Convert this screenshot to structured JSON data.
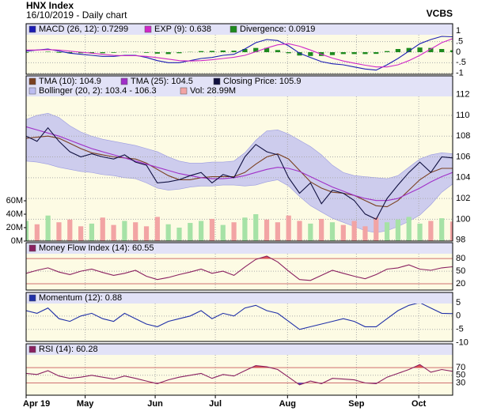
{
  "header": {
    "title": "HNX Index",
    "subtitle": "16/10/2019 - Daily chart",
    "source": "VCBS"
  },
  "chart_data": [
    {
      "type": "line",
      "ylim": [
        -1.05,
        1.35
      ],
      "yticks": [
        1,
        {
          "value": 0.5,
          "label": ".5"
        },
        0,
        {
          "value": -0.5,
          "label": "-.5"
        },
        -1
      ],
      "series": [
        {
          "name": "MACD (26, 12): 0.7299",
          "color": "#1c1cb4",
          "style": "line",
          "values": [
            0.05,
            0.1,
            0.15,
            0.05,
            -0.05,
            -0.1,
            -0.15,
            -0.2,
            -0.2,
            -0.15,
            -0.15,
            -0.25,
            -0.4,
            -0.5,
            -0.5,
            -0.4,
            -0.3,
            -0.25,
            -0.15,
            -0.1,
            0.15,
            0.45,
            0.6,
            0.55,
            0.3,
            -0.05,
            -0.25,
            -0.45,
            -0.55,
            -0.6,
            -0.7,
            -0.8,
            -0.85,
            -0.6,
            -0.3,
            0.05,
            0.4,
            0.6,
            0.75,
            0.73
          ]
        },
        {
          "name": "EXP (9): 0.638",
          "color": "#d028c8",
          "style": "line",
          "values": [
            0.1,
            0.1,
            0.12,
            0.1,
            0.05,
            0,
            -0.05,
            -0.1,
            -0.15,
            -0.17,
            -0.17,
            -0.2,
            -0.26,
            -0.33,
            -0.4,
            -0.42,
            -0.4,
            -0.36,
            -0.3,
            -0.24,
            -0.15,
            0.02,
            0.2,
            0.35,
            0.4,
            0.28,
            0.1,
            -0.1,
            -0.28,
            -0.42,
            -0.52,
            -0.62,
            -0.7,
            -0.7,
            -0.6,
            -0.4,
            -0.15,
            0.15,
            0.45,
            0.64
          ]
        },
        {
          "name": "Divergence: 0.0919",
          "color": "#1e8a1e",
          "style": "bar",
          "values": [
            -0.03,
            0,
            0.02,
            -0.03,
            -0.05,
            -0.05,
            -0.05,
            -0.05,
            -0.03,
            0.01,
            0.01,
            -0.03,
            -0.07,
            -0.09,
            -0.05,
            0.01,
            0.05,
            0.06,
            0.08,
            0.07,
            0.15,
            0.2,
            0.2,
            0.1,
            -0.05,
            -0.16,
            -0.18,
            -0.18,
            -0.14,
            -0.09,
            -0.09,
            -0.09,
            -0.08,
            0.05,
            0.15,
            0.2,
            0.22,
            0.2,
            0.15,
            0.09
          ]
        }
      ]
    },
    {
      "type": "line",
      "ylim": [
        97.9,
        113.8
      ],
      "yticks": [
        98,
        100,
        102,
        104,
        106,
        108,
        110,
        112
      ],
      "y2lim": [
        0,
        246
      ],
      "y2ticks": [
        {
          "value": 0,
          "label": "0M"
        },
        {
          "value": 20,
          "label": "20M"
        },
        {
          "value": 40,
          "label": "40M"
        },
        {
          "value": 60,
          "label": "60M"
        }
      ],
      "series": [
        {
          "name": "TMA (10): 104.9",
          "color": "#7a4020",
          "style": "line",
          "values": [
            107.8,
            107.9,
            108,
            107.8,
            107.3,
            106.8,
            106.4,
            106.2,
            106,
            105.9,
            105.8,
            105.4,
            104.8,
            104.2,
            103.8,
            103.8,
            104,
            104.1,
            104.1,
            104.1,
            104.5,
            105.3,
            106,
            106.3,
            105.8,
            104.7,
            103.6,
            103,
            102.6,
            102.5,
            102.3,
            101.8,
            101.3,
            101.2,
            101.8,
            102.8,
            103.8,
            104.5,
            104.9,
            104.9
          ]
        },
        {
          "name": "TMA (25): 104.5",
          "color": "#a030c8",
          "style": "line",
          "values": [
            108.9,
            108.6,
            108.3,
            108,
            107.6,
            107.2,
            106.8,
            106.5,
            106.2,
            105.9,
            105.6,
            105.3,
            105,
            104.7,
            104.4,
            104.2,
            104,
            103.9,
            103.9,
            104,
            104.2,
            104.5,
            104.8,
            105,
            104.9,
            104.6,
            104.1,
            103.6,
            103.1,
            102.7,
            102.3,
            102,
            101.8,
            101.8,
            102,
            102.5,
            103,
            103.6,
            104.1,
            104.5
          ]
        },
        {
          "name": "Closing Price: 105.9",
          "color": "#101040",
          "style": "line",
          "values": [
            108,
            107.5,
            108.8,
            107.5,
            106.5,
            106,
            106.3,
            106,
            105.8,
            106.2,
            105.5,
            105.2,
            103.5,
            103.6,
            103.8,
            104.2,
            104.5,
            103.5,
            104.3,
            104,
            106,
            107.2,
            106.5,
            106.2,
            104,
            102.5,
            103.5,
            101.5,
            102.8,
            102.5,
            101.8,
            100.5,
            100,
            102,
            103.3,
            104.5,
            105.5,
            104.5,
            106,
            105.9
          ]
        },
        {
          "name": "Bollinger (20, 2): 103.4 - 106.3",
          "color": "#bcbcf0",
          "style": "band",
          "upper": [
            109.6,
            110,
            110.2,
            109.8,
            109,
            108.4,
            108,
            107.7,
            107.5,
            107.3,
            107.1,
            106.8,
            106.5,
            106,
            105.6,
            105.4,
            105.4,
            105.5,
            105.5,
            105.6,
            106.4,
            107.6,
            108.5,
            108.6,
            108.2,
            107.6,
            107,
            106.2,
            105.2,
            104.5,
            104.2,
            104.1,
            104,
            103.9,
            104.2,
            105,
            105.8,
            106.2,
            106.4,
            106.3
          ],
          "lower": [
            105.6,
            105.5,
            105.3,
            105,
            104.8,
            104.6,
            104.5,
            104.3,
            104.2,
            104,
            103.9,
            103.5,
            103,
            102.8,
            102.9,
            103.1,
            103.2,
            103.2,
            103.3,
            103.3,
            103.2,
            103.3,
            103.6,
            103.8,
            103.2,
            102.2,
            101.3,
            100.7,
            100.1,
            99.7,
            99.3,
            98.9,
            98.7,
            98.9,
            99.3,
            99.8,
            100.4,
            101.4,
            102.6,
            103.4
          ]
        },
        {
          "name": "Vol: 28.99M",
          "color": "#f2a4a4",
          "up_color": "#a6e2a6",
          "style": "volume",
          "axis": "y2",
          "values": [
            30,
            25,
            38,
            28,
            32,
            22,
            26,
            35,
            24,
            30,
            28,
            22,
            36,
            25,
            20,
            27,
            30,
            33,
            24,
            28,
            35,
            40,
            32,
            28,
            38,
            30,
            26,
            33,
            28,
            24,
            30,
            22,
            35,
            28,
            32,
            36,
            26,
            30,
            34,
            28.99
          ]
        }
      ]
    },
    {
      "type": "line",
      "ylim": [
        5,
        118
      ],
      "yticks": [
        20,
        50,
        80
      ],
      "shade": true,
      "shade_colors": [
        "#e05555",
        "#4444cc"
      ],
      "series": [
        {
          "name": "Money Flow Index (14): 60.55",
          "color": "#8a2060",
          "style": "line",
          "values": [
            45,
            52,
            58,
            48,
            42,
            50,
            55,
            47,
            40,
            45,
            52,
            38,
            30,
            35,
            42,
            48,
            55,
            45,
            50,
            40,
            60,
            78,
            86,
            72,
            50,
            30,
            28,
            40,
            52,
            45,
            38,
            32,
            42,
            55,
            58,
            65,
            55,
            52,
            58,
            60.55
          ]
        }
      ]
    },
    {
      "type": "line",
      "ylim": [
        -9.5,
        8.8
      ],
      "yticks": [
        5,
        0,
        -5,
        -10
      ],
      "series": [
        {
          "name": "Momentum (12): 0.88",
          "color": "#2030a8",
          "style": "line",
          "values": [
            2,
            1,
            3,
            -1,
            -2,
            0,
            1,
            -1,
            -2,
            1,
            -1,
            -3,
            -4,
            -2,
            -1,
            0,
            2,
            -1,
            1,
            0,
            3,
            4,
            2,
            1,
            -2,
            -5,
            -4,
            -3,
            -2,
            -1,
            -2,
            -4,
            -4,
            -1,
            2,
            4,
            5,
            3,
            1,
            0.88
          ]
        }
      ]
    },
    {
      "type": "line",
      "ylim": [
        -2,
        132
      ],
      "yticks": [
        30,
        50,
        70
      ],
      "shade": true,
      "shade_colors": [
        "#e05555",
        "#4444cc"
      ],
      "xlim": [
        0,
        39
      ],
      "xticks": [
        {
          "value": 0,
          "label": "Apr 19"
        },
        {
          "value": 5.4,
          "label": "May"
        },
        {
          "value": 11.8,
          "label": "Jun"
        },
        {
          "value": 17.3,
          "label": "Jul"
        },
        {
          "value": 23.9,
          "label": "Aug"
        },
        {
          "value": 30.2,
          "label": "Sep"
        },
        {
          "value": 35.9,
          "label": "Oct"
        }
      ],
      "series": [
        {
          "name": "RSI (14): 60.28",
          "color": "#8a2060",
          "style": "line",
          "values": [
            55,
            52,
            62,
            48,
            42,
            45,
            50,
            45,
            40,
            48,
            42,
            35,
            28,
            38,
            45,
            50,
            55,
            42,
            52,
            48,
            62,
            75,
            72,
            65,
            45,
            25,
            35,
            28,
            42,
            40,
            38,
            30,
            28,
            45,
            55,
            65,
            78,
            58,
            65,
            60.28
          ]
        }
      ]
    }
  ]
}
